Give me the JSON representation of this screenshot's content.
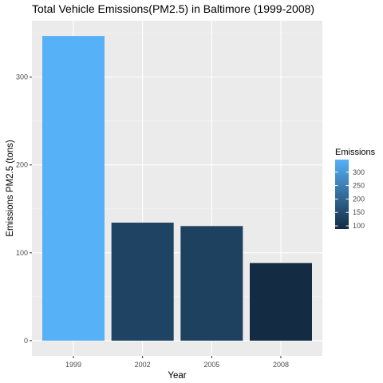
{
  "chart_data": {
    "type": "bar",
    "title": "Total Vehicle Emissions(PM2.5) in Baltimore (1999-2008)",
    "xlabel": "Year",
    "ylabel": "Emissions PM2.5 (tons)",
    "categories": [
      "1999",
      "2002",
      "2005",
      "2008"
    ],
    "values": [
      346.8,
      134.3,
      130.4,
      88.3
    ],
    "ylim": [
      0,
      346.8
    ],
    "yticks": [
      0,
      100,
      200,
      300
    ],
    "grid": true,
    "legend": {
      "title": "Emissions",
      "placement": "right",
      "ticks": [
        100,
        150,
        200,
        250,
        300
      ]
    },
    "colors": {
      "panel": "#ebebeb",
      "grid_major": "#ffffff",
      "grid_minor": "#f5f5f5",
      "low": "#132b43",
      "high": "#56b1f7"
    }
  }
}
